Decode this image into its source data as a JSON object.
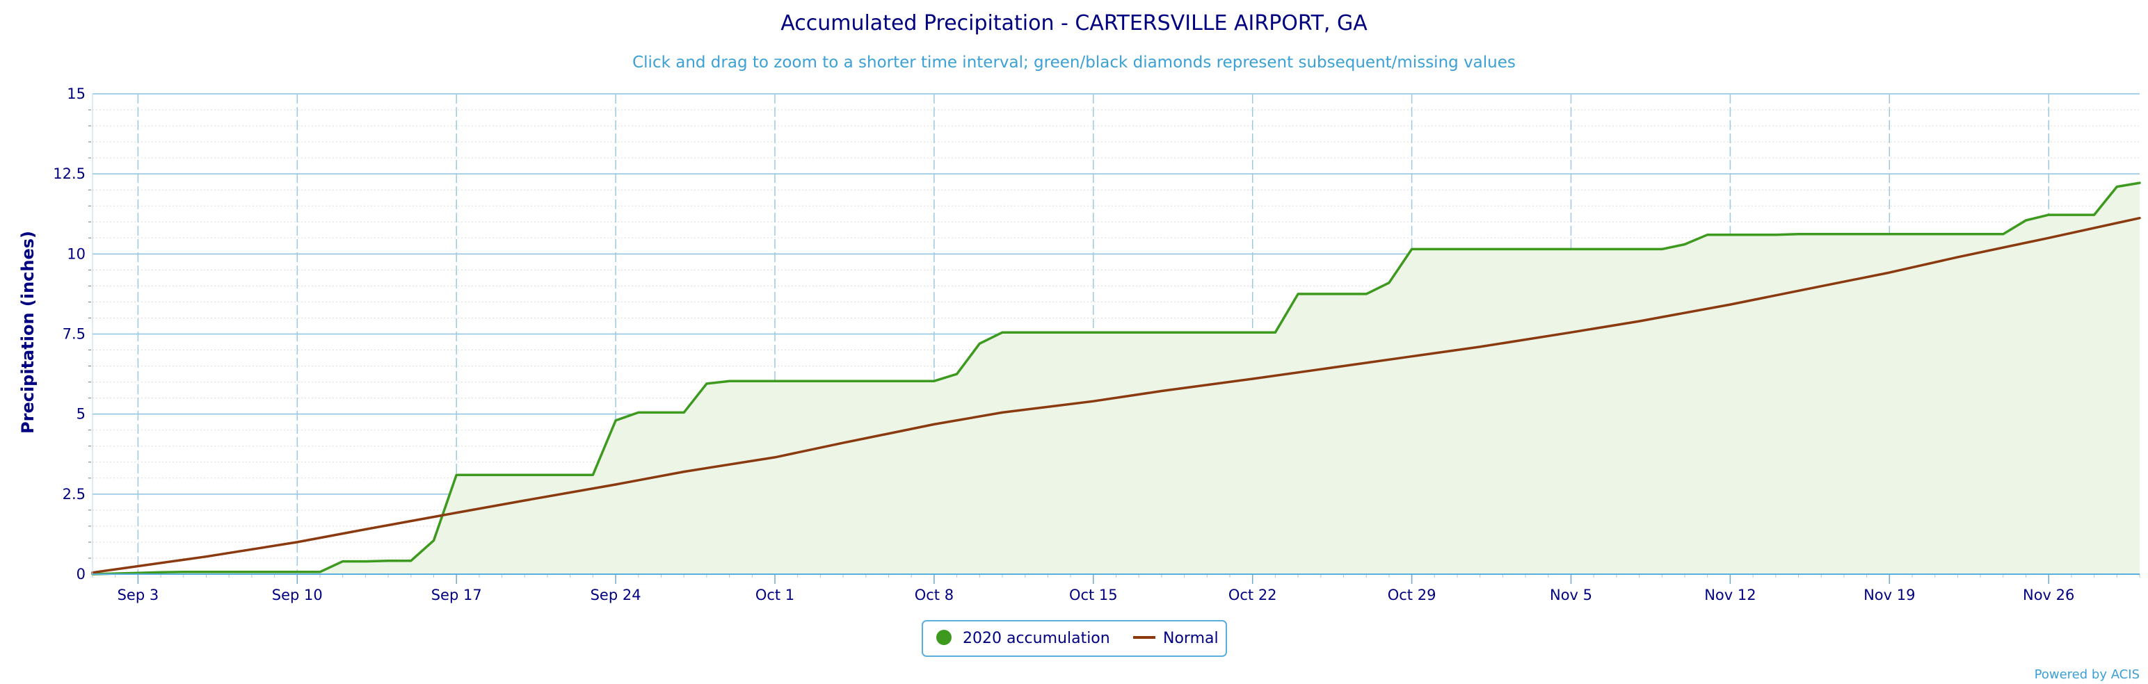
{
  "chart_data": {
    "type": "area",
    "title": "Accumulated Precipitation - CARTERSVILLE AIRPORT, GA",
    "subtitle": "Click and drag to zoom to a shorter time interval; green/black diamonds represent subsequent/missing values",
    "ylabel": "Precipitation (inches)",
    "xlabel": "",
    "ylim": [
      0,
      15
    ],
    "yticks": [
      {
        "value": 0,
        "label": "0"
      },
      {
        "value": 2.5,
        "label": "2.5"
      },
      {
        "value": 5,
        "label": "5"
      },
      {
        "value": 7.5,
        "label": "7.5"
      },
      {
        "value": 10,
        "label": "10"
      },
      {
        "value": 12.5,
        "label": "12.5"
      },
      {
        "value": 15,
        "label": "15"
      }
    ],
    "x_start": "2020-09-01",
    "x_end": "2020-11-30",
    "xticks": [
      {
        "date": "2020-09-03",
        "label": "Sep 3"
      },
      {
        "date": "2020-09-10",
        "label": "Sep 10"
      },
      {
        "date": "2020-09-17",
        "label": "Sep 17"
      },
      {
        "date": "2020-09-24",
        "label": "Sep 24"
      },
      {
        "date": "2020-10-01",
        "label": "Oct 1"
      },
      {
        "date": "2020-10-08",
        "label": "Oct 8"
      },
      {
        "date": "2020-10-15",
        "label": "Oct 15"
      },
      {
        "date": "2020-10-22",
        "label": "Oct 22"
      },
      {
        "date": "2020-10-29",
        "label": "Oct 29"
      },
      {
        "date": "2020-11-05",
        "label": "Nov 5"
      },
      {
        "date": "2020-11-12",
        "label": "Nov 12"
      },
      {
        "date": "2020-11-19",
        "label": "Nov 19"
      },
      {
        "date": "2020-11-26",
        "label": "Nov 26"
      }
    ],
    "grid": true,
    "legend_position": "bottom-center",
    "series": [
      {
        "name": "2020 accumulation",
        "color": "#3d9a1f",
        "fill": "#ecf5e6",
        "style": "area",
        "points": [
          [
            "2020-09-01",
            0.0
          ],
          [
            "2020-09-02",
            0.02
          ],
          [
            "2020-09-03",
            0.04
          ],
          [
            "2020-09-04",
            0.06
          ],
          [
            "2020-09-05",
            0.07
          ],
          [
            "2020-09-06",
            0.07
          ],
          [
            "2020-09-07",
            0.07
          ],
          [
            "2020-09-08",
            0.07
          ],
          [
            "2020-09-09",
            0.07
          ],
          [
            "2020-09-10",
            0.07
          ],
          [
            "2020-09-11",
            0.07
          ],
          [
            "2020-09-12",
            0.4
          ],
          [
            "2020-09-13",
            0.4
          ],
          [
            "2020-09-14",
            0.42
          ],
          [
            "2020-09-15",
            0.42
          ],
          [
            "2020-09-16",
            1.05
          ],
          [
            "2020-09-17",
            3.1
          ],
          [
            "2020-09-18",
            3.1
          ],
          [
            "2020-09-19",
            3.1
          ],
          [
            "2020-09-20",
            3.1
          ],
          [
            "2020-09-21",
            3.1
          ],
          [
            "2020-09-22",
            3.1
          ],
          [
            "2020-09-23",
            3.1
          ],
          [
            "2020-09-24",
            4.8
          ],
          [
            "2020-09-25",
            5.05
          ],
          [
            "2020-09-26",
            5.05
          ],
          [
            "2020-09-27",
            5.05
          ],
          [
            "2020-09-28",
            5.95
          ],
          [
            "2020-09-29",
            6.03
          ],
          [
            "2020-09-30",
            6.03
          ],
          [
            "2020-10-01",
            6.03
          ],
          [
            "2020-10-02",
            6.03
          ],
          [
            "2020-10-03",
            6.03
          ],
          [
            "2020-10-04",
            6.03
          ],
          [
            "2020-10-05",
            6.03
          ],
          [
            "2020-10-06",
            6.03
          ],
          [
            "2020-10-07",
            6.03
          ],
          [
            "2020-10-08",
            6.03
          ],
          [
            "2020-10-09",
            6.25
          ],
          [
            "2020-10-10",
            7.2
          ],
          [
            "2020-10-11",
            7.55
          ],
          [
            "2020-10-12",
            7.55
          ],
          [
            "2020-10-13",
            7.55
          ],
          [
            "2020-10-14",
            7.55
          ],
          [
            "2020-10-15",
            7.55
          ],
          [
            "2020-10-16",
            7.55
          ],
          [
            "2020-10-17",
            7.55
          ],
          [
            "2020-10-18",
            7.55
          ],
          [
            "2020-10-19",
            7.55
          ],
          [
            "2020-10-20",
            7.55
          ],
          [
            "2020-10-21",
            7.55
          ],
          [
            "2020-10-22",
            7.55
          ],
          [
            "2020-10-23",
            7.55
          ],
          [
            "2020-10-24",
            8.75
          ],
          [
            "2020-10-25",
            8.75
          ],
          [
            "2020-10-26",
            8.75
          ],
          [
            "2020-10-27",
            8.75
          ],
          [
            "2020-10-28",
            9.1
          ],
          [
            "2020-10-29",
            10.15
          ],
          [
            "2020-10-30",
            10.15
          ],
          [
            "2020-10-31",
            10.15
          ],
          [
            "2020-11-01",
            10.15
          ],
          [
            "2020-11-02",
            10.15
          ],
          [
            "2020-11-03",
            10.15
          ],
          [
            "2020-11-04",
            10.15
          ],
          [
            "2020-11-05",
            10.15
          ],
          [
            "2020-11-06",
            10.15
          ],
          [
            "2020-11-07",
            10.15
          ],
          [
            "2020-11-08",
            10.15
          ],
          [
            "2020-11-09",
            10.15
          ],
          [
            "2020-11-10",
            10.3
          ],
          [
            "2020-11-11",
            10.6
          ],
          [
            "2020-11-12",
            10.6
          ],
          [
            "2020-11-13",
            10.6
          ],
          [
            "2020-11-14",
            10.6
          ],
          [
            "2020-11-15",
            10.62
          ],
          [
            "2020-11-16",
            10.62
          ],
          [
            "2020-11-17",
            10.62
          ],
          [
            "2020-11-18",
            10.62
          ],
          [
            "2020-11-19",
            10.62
          ],
          [
            "2020-11-20",
            10.62
          ],
          [
            "2020-11-21",
            10.62
          ],
          [
            "2020-11-22",
            10.62
          ],
          [
            "2020-11-23",
            10.62
          ],
          [
            "2020-11-24",
            10.62
          ],
          [
            "2020-11-25",
            11.05
          ],
          [
            "2020-11-26",
            11.22
          ],
          [
            "2020-11-27",
            11.22
          ],
          [
            "2020-11-28",
            11.22
          ],
          [
            "2020-11-29",
            12.1
          ],
          [
            "2020-11-30",
            12.22
          ]
        ]
      },
      {
        "name": "Normal",
        "color": "#8b3a10",
        "style": "line",
        "points": [
          [
            "2020-09-01",
            0.05
          ],
          [
            "2020-09-03",
            0.25
          ],
          [
            "2020-09-06",
            0.55
          ],
          [
            "2020-09-10",
            1.0
          ],
          [
            "2020-09-13",
            1.4
          ],
          [
            "2020-09-17",
            1.92
          ],
          [
            "2020-09-20",
            2.3
          ],
          [
            "2020-09-24",
            2.8
          ],
          [
            "2020-09-27",
            3.2
          ],
          [
            "2020-10-01",
            3.65
          ],
          [
            "2020-10-04",
            4.1
          ],
          [
            "2020-10-08",
            4.68
          ],
          [
            "2020-10-11",
            5.05
          ],
          [
            "2020-10-15",
            5.4
          ],
          [
            "2020-10-18",
            5.72
          ],
          [
            "2020-10-22",
            6.1
          ],
          [
            "2020-10-25",
            6.4
          ],
          [
            "2020-10-29",
            6.8
          ],
          [
            "2020-11-01",
            7.1
          ],
          [
            "2020-11-05",
            7.55
          ],
          [
            "2020-11-08",
            7.9
          ],
          [
            "2020-11-12",
            8.42
          ],
          [
            "2020-11-15",
            8.85
          ],
          [
            "2020-11-19",
            9.42
          ],
          [
            "2020-11-22",
            9.9
          ],
          [
            "2020-11-26",
            10.5
          ],
          [
            "2020-11-30",
            11.12
          ]
        ]
      }
    ],
    "credit": "Powered by ACIS"
  }
}
